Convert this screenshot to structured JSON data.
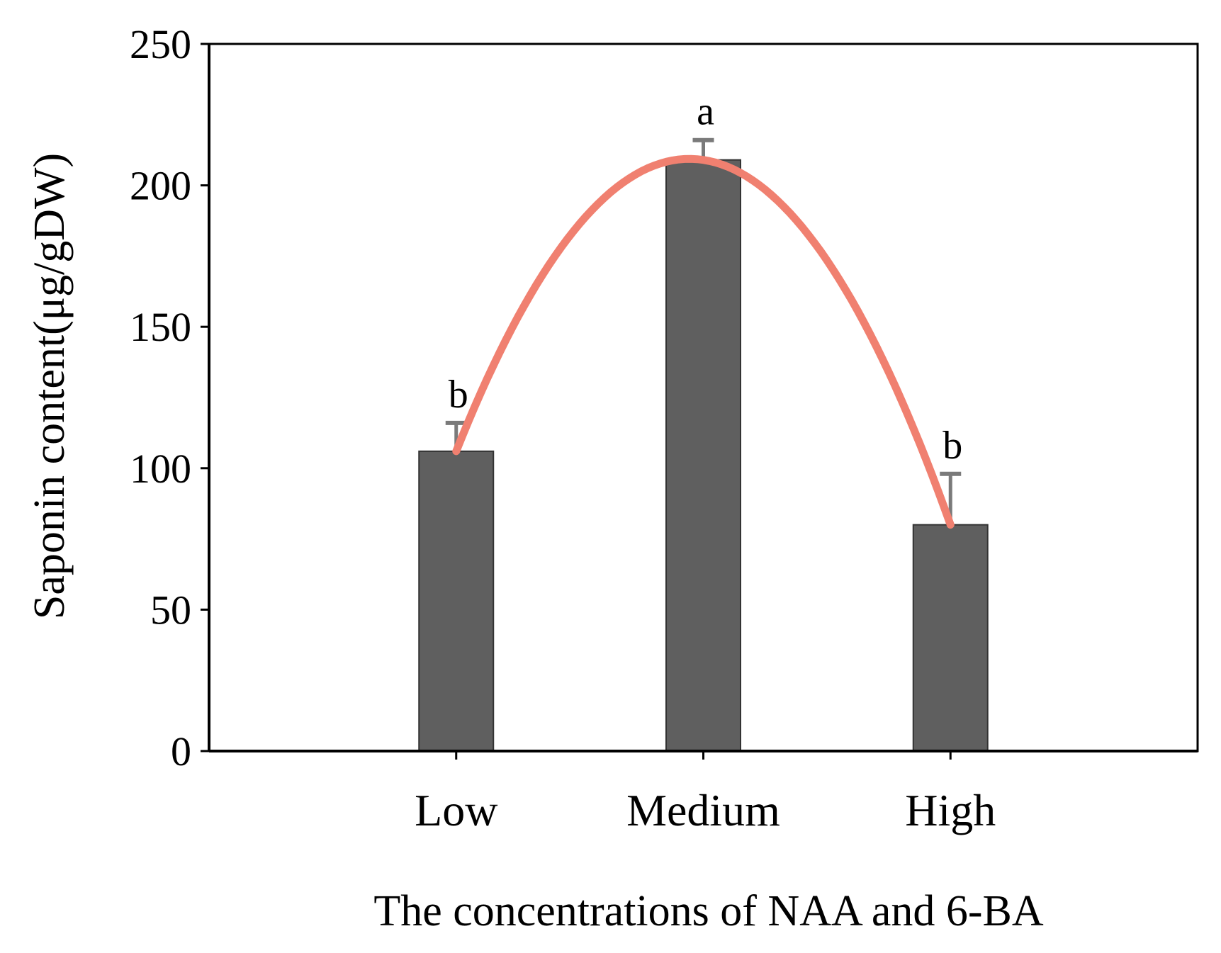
{
  "chart_data": {
    "type": "bar",
    "title": "",
    "xlabel": "The concentrations of NAA and 6-BA",
    "ylabel": "Saponin content(μg/gDW)",
    "categories": [
      "Low",
      "Medium",
      "High"
    ],
    "values": [
      106,
      209,
      80
    ],
    "error_upper": [
      116,
      216,
      98
    ],
    "significance": [
      "b",
      "a",
      "b"
    ],
    "ylim": [
      0,
      250
    ],
    "yticks": [
      0,
      50,
      100,
      150,
      200,
      250
    ],
    "xlim": [
      0,
      4
    ],
    "grid": false,
    "trend_line": {
      "type": "quadratic",
      "through": "bar tops"
    },
    "colors": {
      "bar": "#5f5f5f",
      "error": "#7a7a7a",
      "trend": "#f08070",
      "axis": "#000000"
    }
  }
}
